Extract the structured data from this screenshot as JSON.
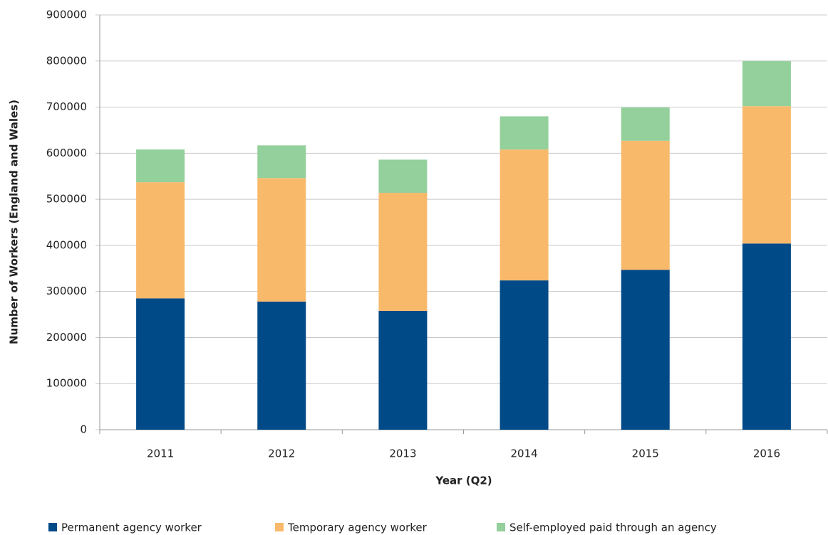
{
  "chart_data": {
    "type": "stacked_bar",
    "x_label": "Year (Q2)",
    "y_label": "Number of Workers (England and Wales)",
    "categories": [
      "2011",
      "2012",
      "2013",
      "2014",
      "2015",
      "2016"
    ],
    "series": [
      {
        "name": "Permanent agency worker",
        "color": "#004a87",
        "values": [
          285000,
          278000,
          258000,
          324000,
          347000,
          404000
        ]
      },
      {
        "name": "Temporary agency worker",
        "color": "#f9b96b",
        "values": [
          252000,
          268000,
          256000,
          284000,
          280000,
          298000
        ]
      },
      {
        "name": "Self-employed paid through an agency",
        "color": "#93d09b",
        "values": [
          71000,
          71000,
          72000,
          72000,
          72000,
          98000
        ]
      }
    ],
    "ylim": [
      0,
      900000
    ],
    "yticks": [
      0,
      100000,
      200000,
      300000,
      400000,
      500000,
      600000,
      700000,
      800000,
      900000
    ],
    "grid": true
  }
}
